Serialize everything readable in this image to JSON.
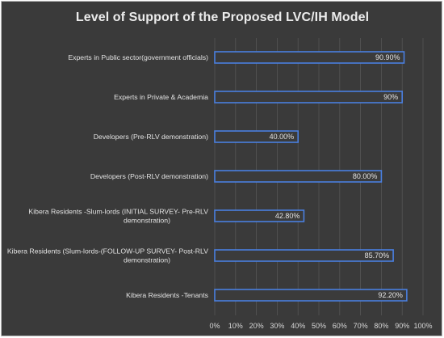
{
  "chart_data": {
    "type": "bar",
    "orientation": "horizontal",
    "title": "Level of Support of the Proposed LVC/IH Model",
    "xlabel": "",
    "ylabel": "",
    "xlim": [
      0,
      100
    ],
    "x_ticks": [
      "0%",
      "10%",
      "20%",
      "30%",
      "40%",
      "50%",
      "60%",
      "70%",
      "80%",
      "90%",
      "100%"
    ],
    "grid": true,
    "legend": "none",
    "categories": [
      "Experts in Public sector(government officials)",
      "Experts in Private & Academia",
      "Developers (Pre-RLV demonstration)",
      "Developers (Post-RLV demonstration)",
      "Kibera Residents -Slum-lords (INITIAL SURVEY- Pre-RLV demonstration)",
      "Kibera Residents (Slum-lords-(FOLLOW-UP SURVEY- Post-RLV demonstration)",
      "Kibera Residents -Tenants"
    ],
    "category_label_lines": [
      [
        "Experts in Public sector(government officials)"
      ],
      [
        "Experts in Private & Academia"
      ],
      [
        "Developers (Pre-RLV demonstration)"
      ],
      [
        "Developers (Post-RLV demonstration)"
      ],
      [
        "Kibera Residents -Slum-lords (INITIAL SURVEY- Pre-RLV",
        "demonstration)"
      ],
      [
        "Kibera Residents (Slum-lords-(FOLLOW-UP SURVEY- Post-RLV",
        "demonstration)"
      ],
      [
        "Kibera Residents -Tenants"
      ]
    ],
    "values": [
      90.9,
      90,
      40,
      80,
      42.8,
      85.7,
      92.2
    ],
    "value_labels": [
      "90.90%",
      "90%",
      "40.00%",
      "80.00%",
      "42.80%",
      "85.70%",
      "92.20%"
    ],
    "colors": {
      "background": "#3a3a3a",
      "bar_fill": "#3b3b3b",
      "bar_border": "#4a7fe0",
      "grid": "#555555",
      "text": "#e3e3e3"
    }
  }
}
